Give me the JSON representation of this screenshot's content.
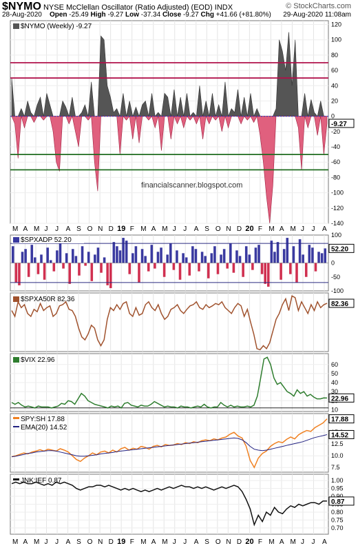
{
  "header": {
    "symbol": "$NYMO",
    "description": "NYSE McClellan Oscillator (Ratio Adjusted) (EOD)",
    "index_tag": "INDX",
    "date": "28-Aug-2020",
    "open_label": "Open",
    "open": "-25.49",
    "high_label": "High",
    "high": "-9.27",
    "low_label": "Low",
    "low": "-37.34",
    "close_label": "Close",
    "close": "-9.27",
    "chg_label": "Chg",
    "chg": "+41.66 (+81.80%)",
    "brand": "© StockCharts.com",
    "brand_date": "29-Aug-2020 11:08am"
  },
  "watermark": "financialscanner.blogspot.com",
  "x_axis_labels": [
    "M",
    "A",
    "M",
    "J",
    "J",
    "A",
    "S",
    "O",
    "N",
    "D",
    "19",
    "F",
    "M",
    "A",
    "M",
    "J",
    "J",
    "A",
    "S",
    "O",
    "N",
    "D",
    "20",
    "F",
    "M",
    "A",
    "M",
    "J",
    "J",
    "A"
  ],
  "colors": {
    "nymo_pos": "#555555",
    "nymo_neg": "#e0607e",
    "level_red": "#b0104a",
    "level_green": "#1f6b1f",
    "adp_pos": "#3a3aa0",
    "adp_neg": "#d03050",
    "adp_band": "#2a2a80",
    "spxa50r": "#a0522d",
    "vix": "#2e7d2e",
    "spy": "#f08020",
    "ema": "#202080",
    "jnk": "#111111"
  },
  "chart_data": [
    {
      "type": "area",
      "legend": "$NYMO (Weekly) -9.27",
      "last_value_label": "-9.27",
      "ylim": [
        -140,
        125
      ],
      "yticks": [
        120,
        100,
        80,
        60,
        40,
        20,
        0,
        -20,
        -40,
        -60,
        -80,
        -100,
        -120,
        -140
      ],
      "reference_lines": [
        {
          "value": 70,
          "color": "red"
        },
        {
          "value": 50,
          "color": "red"
        },
        {
          "value": 0,
          "color": "blue-dotted"
        },
        {
          "value": -50,
          "color": "green"
        },
        {
          "value": -70,
          "color": "green"
        }
      ],
      "values": [
        50,
        -10,
        -55,
        10,
        -15,
        20,
        5,
        -8,
        15,
        25,
        -5,
        30,
        15,
        -20,
        -60,
        -72,
        20,
        12,
        -10,
        25,
        -20,
        -40,
        5,
        15,
        -5,
        45,
        -60,
        -98,
        105,
        100,
        40,
        25,
        5,
        10,
        -50,
        30,
        -5,
        20,
        -30,
        12,
        -35,
        15,
        20,
        -5,
        30,
        -15,
        5,
        -45,
        30,
        25,
        -30,
        35,
        -10,
        25,
        -15,
        30,
        -5,
        5,
        -10,
        40,
        -30,
        20,
        -10,
        30,
        -5,
        15,
        -20,
        45,
        -15,
        10,
        5,
        35,
        -10,
        25,
        -5,
        30,
        -8,
        10,
        -25,
        -60,
        -105,
        -140,
        -90,
        10,
        100,
        85,
        60,
        110,
        40,
        100,
        -15,
        -70,
        30,
        -15,
        22,
        5,
        -25,
        20,
        -50,
        -9.27
      ]
    },
    {
      "type": "bar",
      "legend": "$SPXADP 52.20",
      "last_value_label": "52.20",
      "ylim": [
        -100,
        100
      ],
      "yticks": [
        100,
        50,
        0,
        -50,
        -100
      ],
      "reference_lines": [
        {
          "value": 70
        },
        {
          "value": -70
        }
      ],
      "values": [
        60,
        -70,
        -80,
        40,
        50,
        -50,
        65,
        20,
        -40,
        30,
        -60,
        55,
        10,
        -30,
        45,
        70,
        -20,
        35,
        -75,
        50,
        25,
        -45,
        60,
        -10,
        40,
        -65,
        30,
        55,
        -35,
        20,
        -80,
        -90,
        75,
        60,
        45,
        90,
        80,
        -40,
        35,
        60,
        -70,
        50,
        25,
        -30,
        65,
        -20,
        40,
        55,
        -50,
        30,
        70,
        -25,
        45,
        -60,
        35,
        20,
        -45,
        60,
        50,
        -30,
        40,
        25,
        -55,
        35,
        60,
        -40,
        30,
        50,
        -20,
        70,
        -35,
        45,
        25,
        -50,
        60,
        30,
        -25,
        55,
        65,
        -40,
        -75,
        -85,
        80,
        40,
        75,
        -60,
        50,
        90,
        -40,
        60,
        -70,
        85,
        30,
        -50,
        65,
        55,
        -30,
        40,
        35,
        52.2
      ]
    },
    {
      "type": "line",
      "legend": "$SPXA50R 82.36",
      "last_value_label": "82.36",
      "ylim": [
        0,
        100
      ],
      "values": [
        70,
        60,
        85,
        75,
        80,
        65,
        60,
        72,
        68,
        82,
        70,
        75,
        78,
        60,
        65,
        78,
        80,
        85,
        72,
        70,
        60,
        40,
        25,
        20,
        30,
        45,
        40,
        20,
        10,
        20,
        55,
        75,
        70,
        80,
        72,
        82,
        85,
        65,
        60,
        75,
        62,
        65,
        80,
        85,
        75,
        70,
        80,
        65,
        55,
        60,
        72,
        75,
        80,
        70,
        65,
        72,
        78,
        80,
        85,
        75,
        72,
        80,
        75,
        78,
        82,
        80,
        85,
        75,
        70,
        65,
        75,
        82,
        78,
        60,
        72,
        50,
        30,
        5,
        3,
        10,
        5,
        15,
        35,
        55,
        65,
        80,
        90,
        70,
        95,
        92,
        70,
        85,
        75,
        65,
        80,
        70,
        85,
        75,
        80,
        82.36
      ]
    },
    {
      "type": "line",
      "legend": "$VIX 22.96",
      "last_value_label": "22.96",
      "ylim": [
        8,
        72
      ],
      "yticks": [
        60,
        50,
        40,
        30,
        20,
        10
      ],
      "reference_lines": [
        {
          "value": 12
        }
      ],
      "values": [
        18,
        16,
        18,
        15,
        13,
        14,
        13,
        12,
        14,
        13,
        13,
        13,
        12,
        13,
        14,
        17,
        16,
        20,
        19,
        16,
        22,
        28,
        25,
        20,
        18,
        16,
        15,
        14,
        13,
        12,
        14,
        13,
        14,
        12,
        17,
        18,
        15,
        14,
        13,
        15,
        14,
        14,
        16,
        19,
        17,
        15,
        13,
        14,
        13,
        13,
        12,
        14,
        13,
        13,
        12,
        13,
        14,
        13,
        16,
        13,
        12,
        13,
        13,
        18,
        15,
        13,
        15,
        13,
        14,
        13,
        13,
        14,
        13,
        15,
        25,
        45,
        66,
        68,
        60,
        45,
        38,
        40,
        35,
        30,
        28,
        25,
        32,
        28,
        30,
        25,
        27,
        24,
        22,
        22,
        23,
        22.96
      ]
    },
    {
      "type": "line",
      "legend_series": [
        "SPY:SH 17.88",
        "EMA(20) 14.52"
      ],
      "last_value_labels": [
        "17.88",
        "14.52"
      ],
      "ylim": [
        6.5,
        19
      ],
      "yticks": [
        15.0,
        12.5,
        10.0,
        7.5
      ],
      "series": [
        {
          "name": "SPY:SH",
          "values": [
            9.8,
            10.0,
            10.3,
            10.6,
            10.4,
            10.8,
            11.0,
            11.3,
            11.0,
            11.4,
            11.2,
            11.0,
            11.5,
            11.2,
            10.8,
            10.0,
            9.2,
            8.8,
            9.5,
            10.0,
            10.6,
            10.2,
            10.8,
            11.0,
            10.6,
            11.2,
            10.8,
            11.5,
            11.8,
            11.2,
            11.6,
            11.4,
            12.0,
            11.8,
            11.4,
            12.0,
            12.2,
            11.9,
            12.4,
            12.2,
            12.3,
            12.6,
            12.4,
            12.8,
            12.6,
            13.0,
            12.8,
            13.2,
            13.4,
            13.2,
            13.6,
            13.4,
            13.8,
            14.0,
            14.6,
            15.0,
            14.2,
            13.8,
            12.0,
            9.0,
            7.5,
            9.5,
            10.5,
            11.0,
            12.0,
            12.6,
            13.0,
            12.8,
            13.5,
            14.0,
            13.6,
            14.5,
            15.0,
            15.4,
            15.2,
            16.0,
            16.5,
            17.0,
            17.88
          ]
        },
        {
          "name": "EMA(20)",
          "values": [
            9.8,
            9.9,
            10.1,
            10.3,
            10.5,
            10.6,
            10.8,
            10.9,
            11.0,
            11.1,
            11.1,
            11.0,
            10.8,
            10.6,
            10.4,
            10.2,
            10.0,
            9.9,
            9.9,
            10.0,
            10.1,
            10.2,
            10.4,
            10.5,
            10.6,
            10.7,
            10.9,
            11.0,
            11.1,
            11.2,
            11.3,
            11.4,
            11.5,
            11.6,
            11.7,
            11.8,
            11.9,
            12.0,
            12.1,
            12.2,
            12.3,
            12.4,
            12.5,
            12.6,
            12.7,
            12.8,
            12.9,
            13.0,
            13.1,
            13.2,
            13.3,
            13.4,
            13.5,
            13.6,
            13.7,
            13.8,
            13.7,
            13.4,
            12.8,
            12.0,
            11.4,
            11.2,
            11.1,
            11.2,
            11.4,
            11.6,
            11.8,
            12.0,
            12.2,
            12.4,
            12.6,
            12.8,
            13.0,
            13.3,
            13.6,
            13.9,
            14.1,
            14.3,
            14.52
          ]
        }
      ]
    },
    {
      "type": "line",
      "legend": "JNK:IEF 0.87",
      "last_value_label": "0.87",
      "ylim": [
        0.66,
        1.04
      ],
      "yticks": [
        1.0,
        0.95,
        0.9,
        0.85,
        0.8,
        0.75,
        0.7
      ],
      "values": [
        0.98,
        0.99,
        0.98,
        0.99,
        0.98,
        0.98,
        0.99,
        0.98,
        0.97,
        0.98,
        0.97,
        0.99,
        0.98,
        0.99,
        0.98,
        0.97,
        0.95,
        0.94,
        0.95,
        0.96,
        0.96,
        0.97,
        0.97,
        0.96,
        0.97,
        0.96,
        0.95,
        0.94,
        0.95,
        0.94,
        0.95,
        0.94,
        0.93,
        0.94,
        0.93,
        0.94,
        0.95,
        0.94,
        0.95,
        0.96,
        0.95,
        0.96,
        0.97,
        0.96,
        0.96,
        0.95,
        0.96,
        0.95,
        0.96,
        0.95,
        0.94,
        0.95,
        0.96,
        0.95,
        0.96,
        0.97,
        0.96,
        0.93,
        0.88,
        0.82,
        0.72,
        0.78,
        0.74,
        0.8,
        0.78,
        0.83,
        0.8,
        0.79,
        0.82,
        0.84,
        0.83,
        0.85,
        0.84,
        0.85,
        0.86,
        0.86,
        0.85,
        0.87,
        0.87
      ]
    }
  ]
}
